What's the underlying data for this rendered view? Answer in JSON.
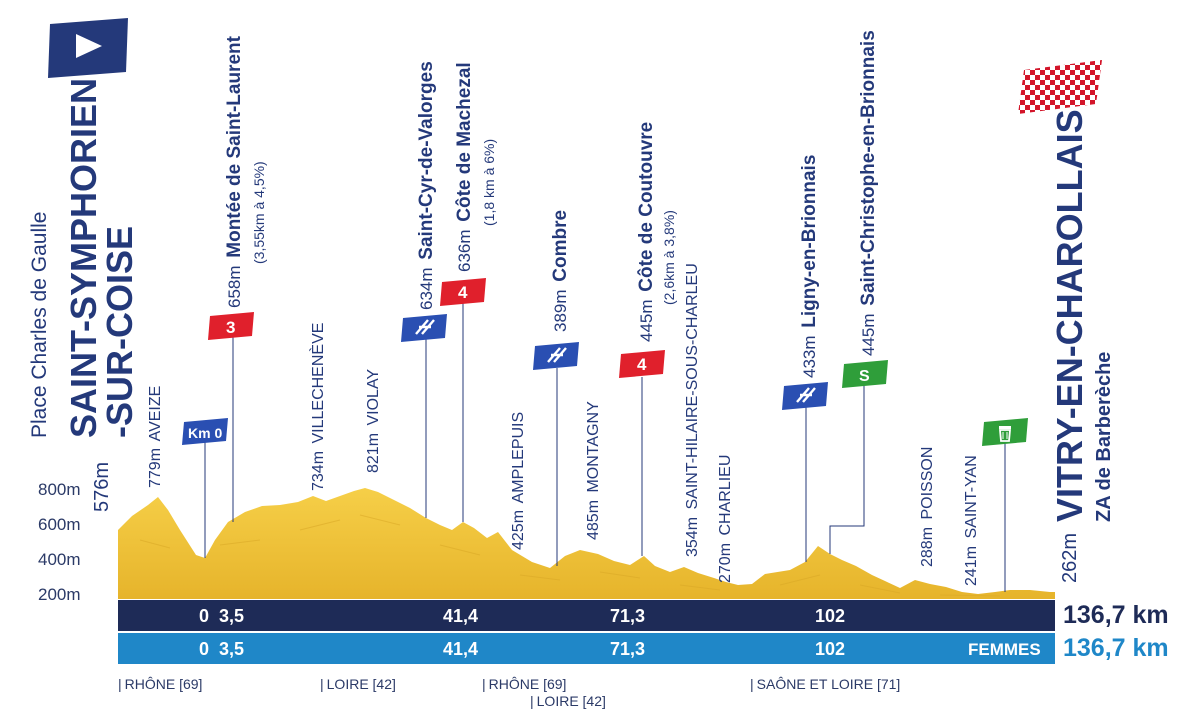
{
  "start": {
    "place": "Place Charles de Gaulle",
    "name_line1": "SAINT-SYMPHORIEN",
    "name_line2": "-SUR-COISE",
    "altitude": "576m",
    "flag_color": "#24397a"
  },
  "finish": {
    "name": "VITRY-EN-CHAROLLAIS",
    "place": "ZA de Barberèche",
    "altitude": "262m"
  },
  "km0": {
    "label": "Km 0"
  },
  "elevation_ticks": [
    "800m",
    "600m",
    "400m",
    "200m"
  ],
  "points": [
    {
      "id": "aveize",
      "alt": "779m",
      "name": "AVEIZE",
      "km": 0.5
    },
    {
      "id": "saint-laurent",
      "alt": "658m",
      "name": "Montée de Saint-Laurent",
      "detail": "(3,55km à 4,5%)",
      "badge": "3",
      "badge_type": "climb",
      "km": 3.5
    },
    {
      "id": "villechenve",
      "alt": "734m",
      "name": "VILLECHENÈVE",
      "km": 18
    },
    {
      "id": "violay",
      "alt": "821m",
      "name": "VIOLAY",
      "km": 25
    },
    {
      "id": "saint-cyr",
      "alt": "634m",
      "name": "Saint-Cyr-de-Valorges",
      "badge": "sprint",
      "badge_type": "intermediate",
      "km": 38
    },
    {
      "id": "machezal",
      "alt": "636m",
      "name": "Côte de Machezal",
      "detail": "(1,8 km à 6%)",
      "badge": "4",
      "badge_type": "climb",
      "km": 41.4
    },
    {
      "id": "amplepuis",
      "alt": "425m",
      "name": "AMPLEPUIS",
      "km": 50
    },
    {
      "id": "combre",
      "alt": "389m",
      "name": "Combre",
      "badge": "sprint",
      "badge_type": "intermediate",
      "km": 55
    },
    {
      "id": "montagny",
      "alt": "485m",
      "name": "MONTAGNY",
      "km": 61
    },
    {
      "id": "coutouvre",
      "alt": "445m",
      "name": "Côte de Coutouvre",
      "detail": "(2,6km à 3,8%)",
      "badge": "4",
      "badge_type": "climb",
      "km": 71.3
    },
    {
      "id": "saint-hilaire",
      "alt": "354m",
      "name": "SAINT-HILAIRE-SOUS-CHARLEU",
      "km": 78
    },
    {
      "id": "charlieu",
      "alt": "270m",
      "name": "CHARLIEU",
      "km": 83
    },
    {
      "id": "ligny",
      "alt": "433m",
      "name": "Ligny-en-Brionnais",
      "badge": "sprint",
      "badge_type": "intermediate",
      "km": 98
    },
    {
      "id": "saint-christophe",
      "alt": "445m",
      "name": "Saint-Christophe-en-Brionnais",
      "badge": "S",
      "badge_type": "sprint",
      "km": 102
    },
    {
      "id": "poisson",
      "alt": "288m",
      "name": "POISSON",
      "km": 112
    },
    {
      "id": "saint-yan",
      "alt": "241m",
      "name": "SAINT-YAN",
      "km": 121
    },
    {
      "id": "feed",
      "name": "",
      "badge": "bin",
      "badge_type": "feed",
      "km": 124
    }
  ],
  "distance_bars": [
    {
      "id": "men",
      "marks": [
        "0",
        "3,5",
        "41,4",
        "71,3",
        "102"
      ],
      "total": "136,7 km",
      "label": "",
      "color": "#1e2b57",
      "total_color": "#1e2b57"
    },
    {
      "id": "women",
      "marks": [
        "0",
        "3,5",
        "41,4",
        "71,3",
        "102"
      ],
      "total": "136,7 km",
      "label": "FEMMES",
      "color": "#1f87c8",
      "total_color": "#1f87c8"
    }
  ],
  "regions": [
    {
      "label": "RHÔNE [69]"
    },
    {
      "label": "LOIRE [42]"
    },
    {
      "label": "RHÔNE [69]"
    },
    {
      "label": "LOIRE [42]"
    },
    {
      "label": "SAÔNE ET LOIRE [71]"
    }
  ],
  "colors": {
    "navy": "#24397a",
    "climb_red": "#e0202c",
    "intermediate_blue": "#2a4fb2",
    "sprint_green": "#2f9e3a",
    "profile_fill": "#f0c43a"
  }
}
